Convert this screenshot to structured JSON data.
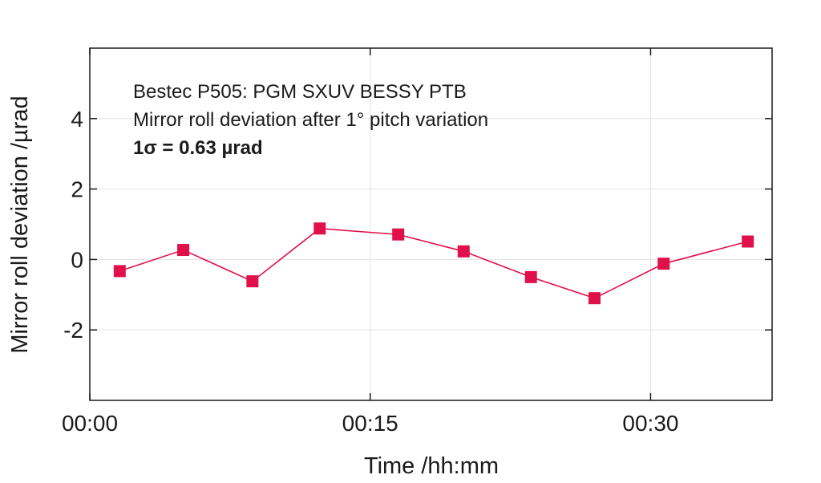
{
  "chart_data": {
    "type": "line",
    "xlabel": "Time /hh:mm",
    "ylabel": "Mirror roll deviation /µrad",
    "xlim": [
      "00:00",
      "00:36.5"
    ],
    "ylim": [
      -4,
      6
    ],
    "x_ticks": [
      "00:00",
      "00:15",
      "00:30"
    ],
    "y_ticks": [
      "-2",
      "0",
      "2",
      "4"
    ],
    "grid": true,
    "annotations": [
      "Bestec P505: PGM SXUV BESSY PTB",
      "Mirror roll deviation after 1° pitch variation",
      "1σ = 0.63 µrad"
    ],
    "series": [
      {
        "color": "#e0104a",
        "marker": "square",
        "points": [
          {
            "x": "00:01.6",
            "y": -0.33
          },
          {
            "x": "00:05.0",
            "y": 0.27
          },
          {
            "x": "00:08.7",
            "y": -0.62
          },
          {
            "x": "00:12.3",
            "y": 0.88
          },
          {
            "x": "00:16.5",
            "y": 0.71
          },
          {
            "x": "00:20.0",
            "y": 0.23
          },
          {
            "x": "00:23.6",
            "y": -0.5
          },
          {
            "x": "00:27.0",
            "y": -1.1
          },
          {
            "x": "00:30.7",
            "y": -0.12
          },
          {
            "x": "00:35.2",
            "y": 0.51
          }
        ]
      }
    ]
  }
}
